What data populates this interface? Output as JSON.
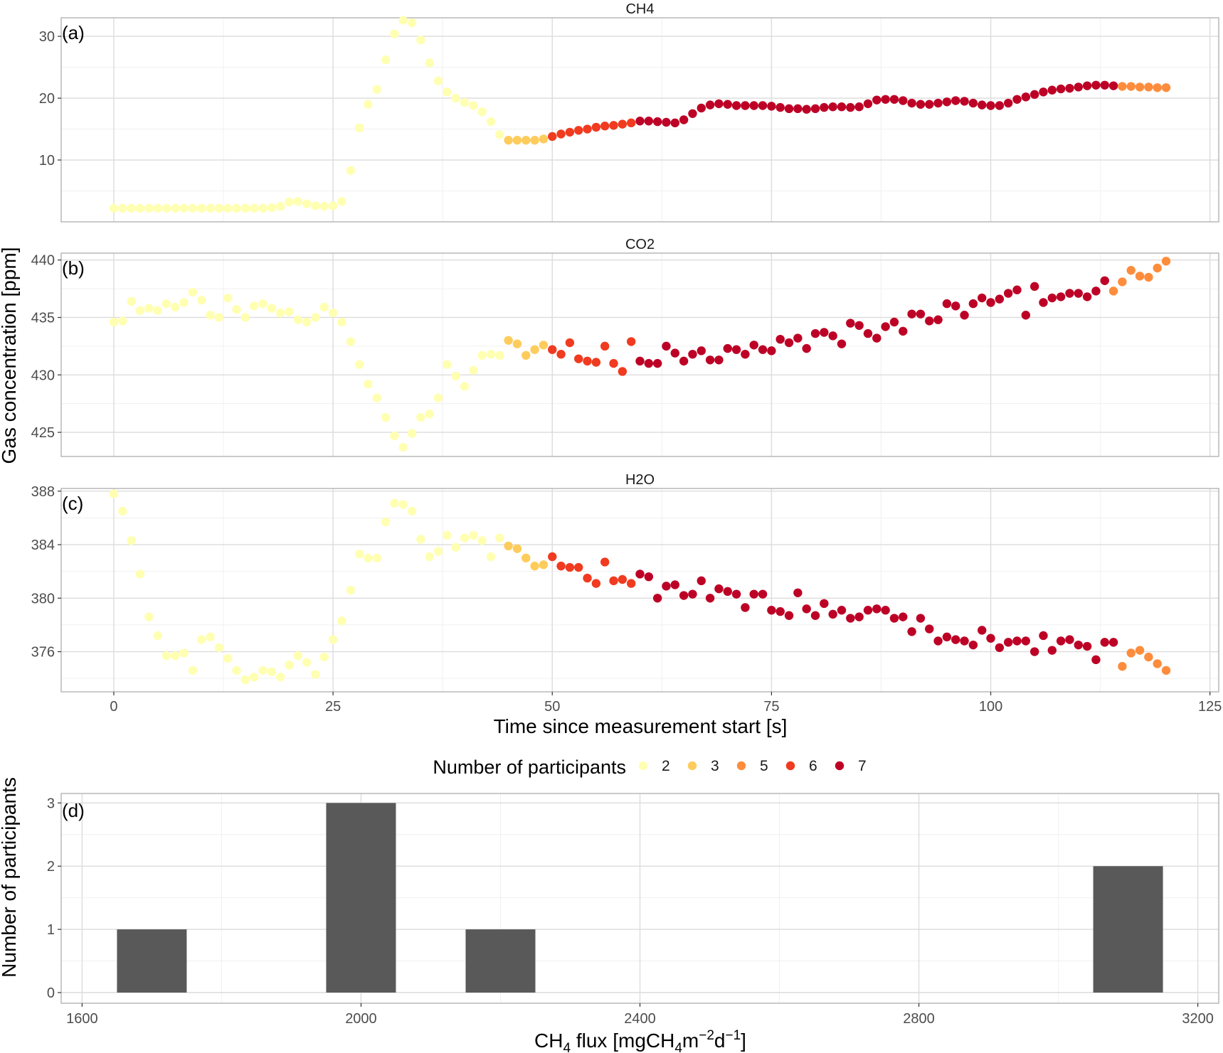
{
  "chart_data": [
    {
      "type": "scatter",
      "panel_label": "(a)",
      "title": "CH4",
      "ylim": [
        0,
        33
      ],
      "yticks": [
        10,
        20,
        30
      ],
      "y_minor": [
        5,
        15,
        25
      ],
      "series": [
        {
          "participants": 2,
          "x": [
            0,
            1,
            2,
            3,
            4,
            5,
            6,
            7,
            8,
            9,
            10,
            11,
            12,
            13,
            14,
            15,
            16,
            17,
            18,
            19,
            20,
            21,
            22,
            23,
            24,
            25,
            26,
            27,
            28,
            29,
            30,
            31,
            32,
            33,
            34,
            35,
            36,
            37,
            38,
            39,
            40,
            41,
            42,
            43,
            44
          ],
          "y": [
            2.2,
            2.2,
            2.2,
            2.2,
            2.2,
            2.2,
            2.2,
            2.2,
            2.2,
            2.2,
            2.2,
            2.2,
            2.2,
            2.2,
            2.2,
            2.2,
            2.2,
            2.2,
            2.3,
            2.5,
            3.2,
            3.3,
            2.9,
            2.6,
            2.5,
            2.6,
            3.3,
            8.3,
            15.2,
            19,
            21.4,
            26.2,
            30.4,
            32.6,
            32.2,
            29.4,
            25.7,
            22.8,
            21,
            20,
            19.3,
            18.8,
            17.8,
            16.2,
            14.1
          ]
        },
        {
          "participants": 3,
          "x": [
            45,
            46,
            47,
            48,
            49
          ],
          "y": [
            13.2,
            13.2,
            13.2,
            13.2,
            13.4
          ]
        },
        {
          "participants": 6,
          "x": [
            50,
            51,
            52,
            53,
            54,
            55,
            56,
            57,
            58,
            59
          ],
          "y": [
            13.8,
            14.2,
            14.5,
            14.8,
            15,
            15.3,
            15.5,
            15.6,
            15.8,
            16
          ]
        },
        {
          "participants": 7,
          "x": [
            60,
            61,
            62,
            63,
            64,
            65,
            66,
            67,
            68,
            69,
            70,
            71,
            72,
            73,
            74,
            75,
            76,
            77,
            78,
            79,
            80,
            81,
            82,
            83,
            84,
            85,
            86,
            87,
            88,
            89,
            90,
            91,
            92,
            93,
            94,
            95,
            96,
            97,
            98,
            99,
            100,
            101,
            102,
            103,
            104,
            105,
            106,
            107,
            108,
            109,
            110,
            111,
            112,
            113,
            114
          ],
          "y": [
            16.3,
            16.3,
            16.2,
            16.1,
            16,
            16.5,
            17.5,
            18.4,
            18.9,
            19.1,
            19,
            18.8,
            18.8,
            18.8,
            18.8,
            18.7,
            18.5,
            18.3,
            18.3,
            18.2,
            18.3,
            18.5,
            18.6,
            18.6,
            18.5,
            18.6,
            19.1,
            19.7,
            19.8,
            19.8,
            19.6,
            19.2,
            19,
            19,
            19.2,
            19.4,
            19.6,
            19.5,
            19.2,
            18.9,
            18.8,
            18.8,
            19.2,
            19.8,
            20.2,
            20.6,
            21,
            21.3,
            21.5,
            21.6,
            21.8,
            22,
            22.1,
            22.1,
            22
          ]
        },
        {
          "participants": 5,
          "x": [
            115,
            116,
            117,
            118,
            119,
            120
          ],
          "y": [
            21.9,
            21.9,
            21.8,
            21.8,
            21.7,
            21.7
          ]
        }
      ]
    },
    {
      "type": "scatter",
      "panel_label": "(b)",
      "title": "CO2",
      "ylim": [
        422.9,
        440.6
      ],
      "yticks": [
        425,
        430,
        435,
        440
      ],
      "y_minor": [
        427.5,
        432.5,
        437.5
      ],
      "series": [
        {
          "participants": 2,
          "x": [
            0,
            1,
            2,
            3,
            4,
            5,
            6,
            7,
            8,
            9,
            10,
            11,
            12,
            13,
            14,
            15,
            16,
            17,
            18,
            19,
            20,
            21,
            22,
            23,
            24,
            25,
            26,
            27,
            28,
            29,
            30,
            31,
            32,
            33,
            34,
            35,
            36,
            37,
            38,
            39,
            40,
            41,
            42,
            43,
            44
          ],
          "y": [
            434.6,
            434.7,
            436.4,
            435.6,
            435.8,
            435.6,
            436.2,
            435.9,
            436.3,
            437.2,
            436.5,
            435.2,
            435,
            436.7,
            435.7,
            435,
            436,
            436.2,
            435.8,
            435.4,
            435.5,
            434.8,
            434.6,
            435,
            435.9,
            435.4,
            434.6,
            432.9,
            430.9,
            429.2,
            428,
            426.3,
            424.7,
            423.7,
            424.9,
            426.3,
            426.6,
            428,
            430.9,
            429.9,
            429,
            430.4,
            431.7,
            431.8,
            431.7
          ]
        },
        {
          "participants": 3,
          "x": [
            45,
            46,
            47,
            48,
            49
          ],
          "y": [
            433,
            432.7,
            431.7,
            432.2,
            432.6
          ]
        },
        {
          "participants": 6,
          "x": [
            50,
            51,
            52,
            53,
            54,
            55,
            56,
            57,
            58,
            59
          ],
          "y": [
            432.2,
            431.8,
            432.8,
            431.4,
            431.2,
            431.1,
            432.5,
            431,
            430.3,
            432.9
          ]
        },
        {
          "participants": 7,
          "x": [
            60,
            61,
            62,
            63,
            64,
            65,
            66,
            67,
            68,
            69,
            70,
            71,
            72,
            73,
            74,
            75,
            76,
            77,
            78,
            79,
            80,
            81,
            82,
            83,
            84,
            85,
            86,
            87,
            88,
            89,
            90,
            91,
            92,
            93,
            94,
            95,
            96,
            97,
            98,
            99,
            100,
            101,
            102,
            103,
            104,
            105,
            106,
            107,
            108,
            109,
            110,
            111,
            112,
            113
          ],
          "y": [
            431.2,
            431,
            431,
            432.5,
            431.9,
            431.2,
            431.8,
            432.1,
            431.3,
            431.3,
            432.3,
            432.2,
            431.8,
            432.6,
            432.2,
            432.1,
            433.1,
            432.8,
            433.2,
            432.3,
            433.6,
            433.7,
            433.4,
            432.7,
            434.5,
            434.3,
            433.6,
            433.2,
            434.2,
            434.6,
            433.8,
            435.3,
            435.3,
            434.7,
            434.8,
            436.2,
            436,
            435.2,
            436.2,
            436.7,
            436.3,
            436.6,
            437.1,
            437.4,
            435.2,
            437.7,
            436.3,
            436.7,
            436.8,
            437.1,
            437.1,
            436.8,
            437.3,
            438.2
          ]
        },
        {
          "participants": 5,
          "x": [
            114,
            115,
            116,
            117,
            118,
            119,
            120
          ],
          "y": [
            437.3,
            438.1,
            439.1,
            438.6,
            438.5,
            439.3,
            439.9
          ]
        }
      ]
    },
    {
      "type": "scatter",
      "panel_label": "(c)",
      "title": "H2O",
      "ylim": [
        373,
        388.2
      ],
      "yticks": [
        376,
        380,
        384,
        388
      ],
      "y_minor": [
        374,
        378,
        382,
        386
      ],
      "series": [
        {
          "participants": 2,
          "x": [
            0,
            1,
            2,
            3,
            4,
            5,
            6,
            7,
            8,
            9,
            10,
            11,
            12,
            13,
            14,
            15,
            16,
            17,
            18,
            19,
            20,
            21,
            22,
            23,
            24,
            25,
            26,
            27,
            28,
            29,
            30,
            31,
            32,
            33,
            34,
            35,
            36,
            37,
            38,
            39,
            40,
            41,
            42,
            43,
            44
          ],
          "y": [
            387.8,
            386.5,
            384.3,
            381.8,
            378.6,
            377.2,
            375.7,
            375.7,
            375.9,
            374.6,
            376.9,
            377.1,
            376.3,
            375.5,
            374.6,
            373.9,
            374.1,
            374.6,
            374.5,
            374.1,
            375,
            375.7,
            375.2,
            374.3,
            375.6,
            376.9,
            378.3,
            380.6,
            383.3,
            383,
            383,
            385.7,
            387.1,
            387,
            386.5,
            384.4,
            383.1,
            383.5,
            384.7,
            383.8,
            384.5,
            384.7,
            384.3,
            383.1,
            384.5
          ]
        },
        {
          "participants": 3,
          "x": [
            45,
            46,
            47,
            48,
            49
          ],
          "y": [
            383.9,
            383.7,
            383,
            382.4,
            382.5
          ]
        },
        {
          "participants": 6,
          "x": [
            50,
            51,
            52,
            53,
            54,
            55,
            56,
            57,
            58,
            59
          ],
          "y": [
            383.1,
            382.4,
            382.3,
            382.3,
            381.5,
            381.1,
            382.7,
            381.3,
            381.4,
            381.1
          ]
        },
        {
          "participants": 7,
          "x": [
            60,
            61,
            62,
            63,
            64,
            65,
            66,
            67,
            68,
            69,
            70,
            71,
            72,
            73,
            74,
            75,
            76,
            77,
            78,
            79,
            80,
            81,
            82,
            83,
            84,
            85,
            86,
            87,
            88,
            89,
            90,
            91,
            92,
            93,
            94,
            95,
            96,
            97,
            98,
            99,
            100,
            101,
            102,
            103,
            104,
            105,
            106,
            107,
            108,
            109,
            110,
            111,
            112,
            113,
            114
          ],
          "y": [
            381.8,
            381.6,
            380,
            380.9,
            381,
            380.2,
            380.3,
            381.3,
            380,
            380.7,
            380.5,
            380.3,
            379.3,
            380.3,
            380.3,
            379.1,
            379,
            378.7,
            380.4,
            379.2,
            378.7,
            379.6,
            378.8,
            379.1,
            378.5,
            378.6,
            379.1,
            379.2,
            379.1,
            378.5,
            378.6,
            377.5,
            378.5,
            377.7,
            376.8,
            377.1,
            376.9,
            376.8,
            376.5,
            377.6,
            377,
            376.3,
            376.7,
            376.8,
            376.8,
            376,
            377.2,
            376.1,
            376.8,
            376.9,
            376.5,
            376.4,
            375.4,
            376.7,
            376.7
          ]
        },
        {
          "participants": 5,
          "x": [
            115,
            116,
            117,
            118,
            119,
            120
          ],
          "y": [
            374.9,
            375.9,
            376.1,
            375.6,
            375.1,
            374.6
          ]
        }
      ]
    },
    {
      "type": "bar",
      "panel_label": "(d)",
      "xlabel_main": "CH",
      "xlabel_sub": "4",
      "xlabel_rest": " flux [mgCH",
      "xlabel_sub2": "4",
      "xlabel_rest2": "m",
      "xlabel_sup": "−2",
      "xlabel_rest3": "d",
      "xlabel_sup2": "−1",
      "xlabel_end": "]",
      "ylabel": "Number of participants",
      "xlim": [
        1570,
        3230
      ],
      "xticks": [
        1600,
        2000,
        2400,
        2800,
        3200
      ],
      "x_minor": [
        1800,
        2200,
        2600,
        3000
      ],
      "ylim": [
        0,
        3.15
      ],
      "yticks": [
        0,
        1,
        2,
        3
      ],
      "bars": [
        {
          "xmin": 1650,
          "xmax": 1750,
          "count": 1
        },
        {
          "xmin": 1950,
          "xmax": 2050,
          "count": 3
        },
        {
          "xmin": 2150,
          "xmax": 2250,
          "count": 1
        },
        {
          "xmin": 3050,
          "xmax": 3150,
          "count": 2
        }
      ],
      "bar_color": "#595959"
    }
  ],
  "shared": {
    "ylabel": "Gas concentration [ppm]",
    "xlabel": "Time since measurement start [s]",
    "xlim": [
      -6,
      126
    ],
    "xticks": [
      0,
      25,
      50,
      75,
      100,
      125
    ],
    "x_minor": [
      12.5,
      37.5,
      62.5,
      87.5,
      112.5
    ]
  },
  "legend": {
    "title": "Number of participants",
    "items": [
      {
        "label": "2",
        "color": "#FFFFB2"
      },
      {
        "label": "3",
        "color": "#FECC5C"
      },
      {
        "label": "5",
        "color": "#FD8D3C"
      },
      {
        "label": "6",
        "color": "#F03B20"
      },
      {
        "label": "7",
        "color": "#BD0026"
      }
    ]
  }
}
